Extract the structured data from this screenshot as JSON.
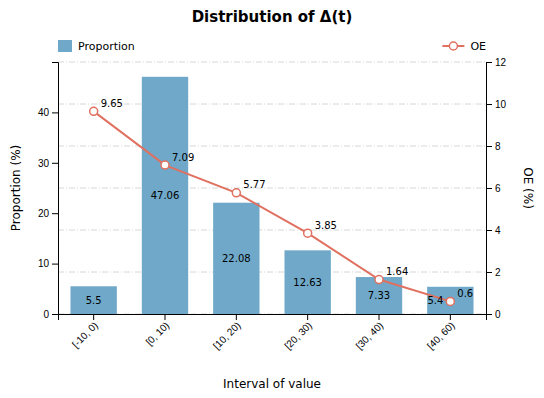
{
  "chart_data": {
    "type": "bar",
    "title": "Distribution of Δ(t)",
    "xlabel": "Interval of value",
    "ylabel": "Proportion (%)",
    "y2label": "OE (%)",
    "categories": [
      "[-10, 0)",
      "[0, 10)",
      "[10, 20)",
      "[20, 30)",
      "[30, 40)",
      "[40, 60)"
    ],
    "series": [
      {
        "name": "Proportion",
        "type": "bar",
        "color": "#6fa8c8",
        "values": [
          5.5,
          47.06,
          22.08,
          12.63,
          7.33,
          5.4
        ]
      },
      {
        "name": "OE",
        "type": "line",
        "axis": "y2",
        "color": "#e07060",
        "marker": "circle",
        "values": [
          9.65,
          7.09,
          5.77,
          3.85,
          1.64,
          0.6
        ]
      }
    ],
    "ylim": [
      0,
      50
    ],
    "yticks": [
      0,
      10,
      20,
      30,
      40
    ],
    "y2lim": [
      0,
      12
    ],
    "y2ticks": [
      0,
      2,
      4,
      6,
      8,
      10,
      12
    ],
    "grid": true,
    "legend": "top",
    "data_labels": true
  }
}
